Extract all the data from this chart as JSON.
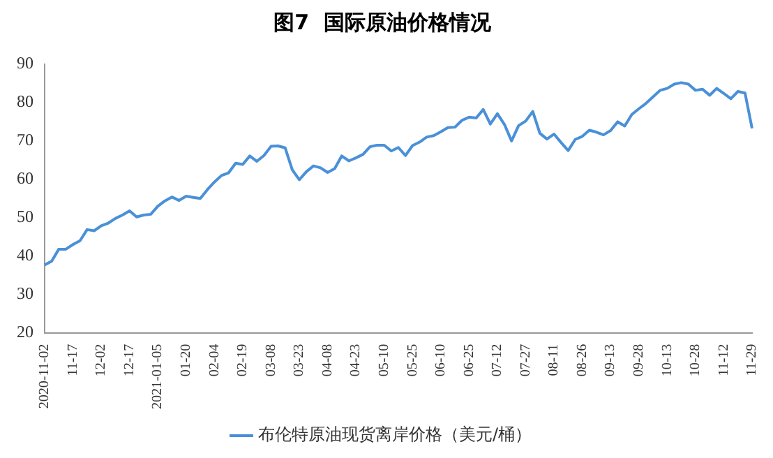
{
  "chart_data": {
    "type": "line",
    "title": "图7  国际原油价格情况",
    "categories": [
      "2020-11-02",
      null,
      null,
      null,
      "11-17",
      null,
      null,
      null,
      "12-02",
      null,
      null,
      null,
      "12-17",
      null,
      null,
      null,
      "2021-01-05",
      null,
      null,
      null,
      "01-20",
      null,
      null,
      null,
      "02-04",
      null,
      null,
      null,
      "02-19",
      null,
      null,
      null,
      "03-08",
      null,
      null,
      null,
      "03-23",
      null,
      null,
      null,
      "04-08",
      null,
      null,
      null,
      "04-23",
      null,
      null,
      null,
      "05-10",
      null,
      null,
      null,
      "05-25",
      null,
      null,
      null,
      "06-10",
      null,
      null,
      null,
      "06-25",
      null,
      null,
      null,
      "07-12",
      null,
      null,
      null,
      "07-27",
      null,
      null,
      null,
      "08-11",
      null,
      null,
      null,
      "08-26",
      null,
      null,
      null,
      "09-13",
      null,
      null,
      null,
      "09-28",
      null,
      null,
      null,
      "10-13",
      null,
      null,
      null,
      "10-28",
      null,
      null,
      null,
      "11-12",
      null,
      null,
      null,
      "11-29"
    ],
    "series": [
      {
        "name": "布伦特原油现货离岸价格（美元/桶）",
        "color": "#4a90d9",
        "values": [
          37.7,
          38.7,
          41.8,
          41.8,
          43,
          44,
          46.9,
          46.6,
          47.9,
          48.6,
          49.8,
          50.7,
          51.8,
          50.2,
          50.7,
          50.9,
          53,
          54.4,
          55.4,
          54.5,
          55.6,
          55.3,
          55,
          57.3,
          59.3,
          61,
          61.7,
          64.2,
          63.9,
          66.1,
          64.7,
          66.2,
          68.6,
          68.7,
          68.2,
          62.5,
          59.9,
          62,
          63.5,
          63,
          61.8,
          62.8,
          66.1,
          64.8,
          65.6,
          66.5,
          68.5,
          68.9,
          68.9,
          67.4,
          68.3,
          66.2,
          68.8,
          69.7,
          71,
          71.4,
          72.4,
          73.5,
          73.6,
          75.4,
          76.2,
          76,
          78.2,
          74.4,
          77.1,
          74.3,
          70,
          74,
          75.2,
          77.7,
          72,
          70.5,
          71.8,
          69.6,
          67.5,
          70.4,
          71.2,
          72.8,
          72.3,
          71.6,
          72.7,
          75,
          73.9,
          76.9,
          78.4,
          79.8,
          81.5,
          83.2,
          83.7,
          84.8,
          85.2,
          84.8,
          83.2,
          83.5,
          81.9,
          83.7,
          82.4,
          81,
          82.9,
          82.5,
          73.3
        ]
      }
    ],
    "ylim": [
      20,
      90
    ],
    "yticks": [
      20,
      30,
      40,
      50,
      60,
      70,
      80,
      90
    ],
    "grid": false,
    "legend": "bottom",
    "marker": "none",
    "line_style": "solid"
  }
}
